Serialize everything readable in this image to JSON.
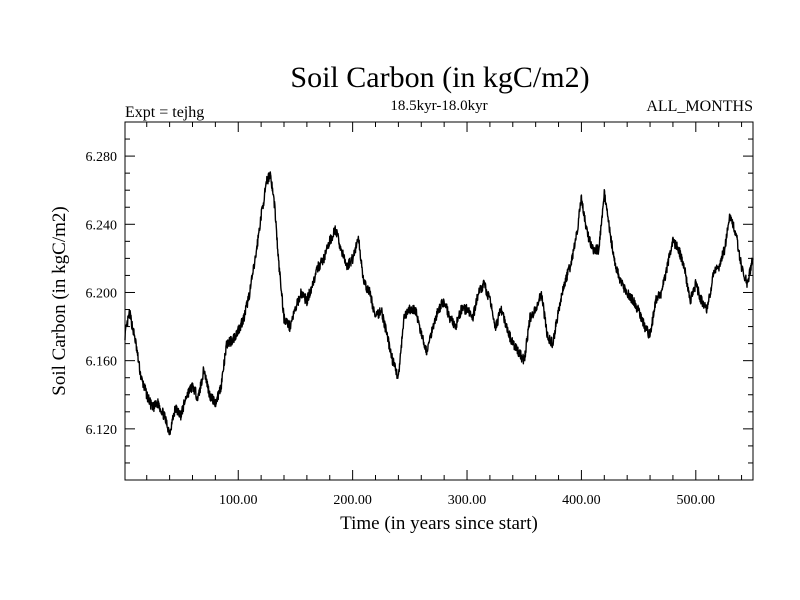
{
  "chart_data": {
    "type": "line",
    "title": "Soil Carbon (in kgC/m2)",
    "subtitle": "18.5kyr-18.0kyr",
    "left_label": "Expt = tejhg",
    "right_label": "ALL_MONTHS",
    "xlabel": "Time (in years since start)",
    "ylabel": "Soil Carbon (in kgC/m2)",
    "xlim": [
      1,
      550
    ],
    "ylim": [
      6.09,
      6.3
    ],
    "xticks": [
      100,
      200,
      300,
      400,
      500
    ],
    "xtick_labels": [
      "100.00",
      "200.00",
      "300.00",
      "400.00",
      "500.00"
    ],
    "yticks": [
      6.12,
      6.16,
      6.2,
      6.24,
      6.28
    ],
    "ytick_labels": [
      "6.120",
      "6.160",
      "6.200",
      "6.240",
      "6.280"
    ],
    "grid": false,
    "series": [
      {
        "name": "Soil Carbon",
        "x": [
          1,
          5,
          10,
          15,
          20,
          25,
          30,
          35,
          40,
          45,
          50,
          55,
          60,
          65,
          70,
          75,
          80,
          85,
          90,
          95,
          100,
          105,
          110,
          115,
          120,
          125,
          128,
          132,
          135,
          140,
          145,
          150,
          155,
          160,
          165,
          170,
          175,
          180,
          185,
          190,
          195,
          200,
          205,
          210,
          215,
          220,
          225,
          230,
          235,
          240,
          245,
          250,
          255,
          260,
          265,
          270,
          275,
          280,
          285,
          290,
          295,
          300,
          305,
          310,
          315,
          320,
          325,
          330,
          335,
          340,
          345,
          350,
          355,
          360,
          365,
          370,
          375,
          380,
          385,
          390,
          395,
          400,
          405,
          410,
          415,
          420,
          425,
          430,
          435,
          440,
          445,
          450,
          455,
          460,
          465,
          470,
          475,
          480,
          485,
          490,
          495,
          500,
          505,
          510,
          515,
          520,
          525,
          530,
          535,
          540,
          545,
          550
        ],
        "values": [
          6.175,
          6.188,
          6.172,
          6.15,
          6.14,
          6.132,
          6.135,
          6.128,
          6.118,
          6.132,
          6.128,
          6.14,
          6.145,
          6.138,
          6.155,
          6.14,
          6.135,
          6.145,
          6.17,
          6.172,
          6.178,
          6.185,
          6.2,
          6.22,
          6.245,
          6.265,
          6.27,
          6.25,
          6.22,
          6.185,
          6.18,
          6.19,
          6.2,
          6.195,
          6.205,
          6.215,
          6.22,
          6.23,
          6.237,
          6.225,
          6.215,
          6.22,
          6.232,
          6.205,
          6.2,
          6.185,
          6.19,
          6.175,
          6.16,
          6.15,
          6.185,
          6.19,
          6.19,
          6.175,
          6.165,
          6.18,
          6.19,
          6.195,
          6.185,
          6.18,
          6.19,
          6.19,
          6.185,
          6.2,
          6.205,
          6.195,
          6.18,
          6.19,
          6.178,
          6.17,
          6.165,
          6.16,
          6.185,
          6.19,
          6.2,
          6.175,
          6.17,
          6.19,
          6.205,
          6.215,
          6.23,
          6.255,
          6.235,
          6.225,
          6.225,
          6.258,
          6.235,
          6.215,
          6.205,
          6.2,
          6.195,
          6.19,
          6.18,
          6.175,
          6.195,
          6.2,
          6.215,
          6.23,
          6.225,
          6.215,
          6.195,
          6.205,
          6.195,
          6.19,
          6.21,
          6.215,
          6.225,
          6.245,
          6.235,
          6.215,
          6.205,
          6.22
        ]
      }
    ]
  }
}
